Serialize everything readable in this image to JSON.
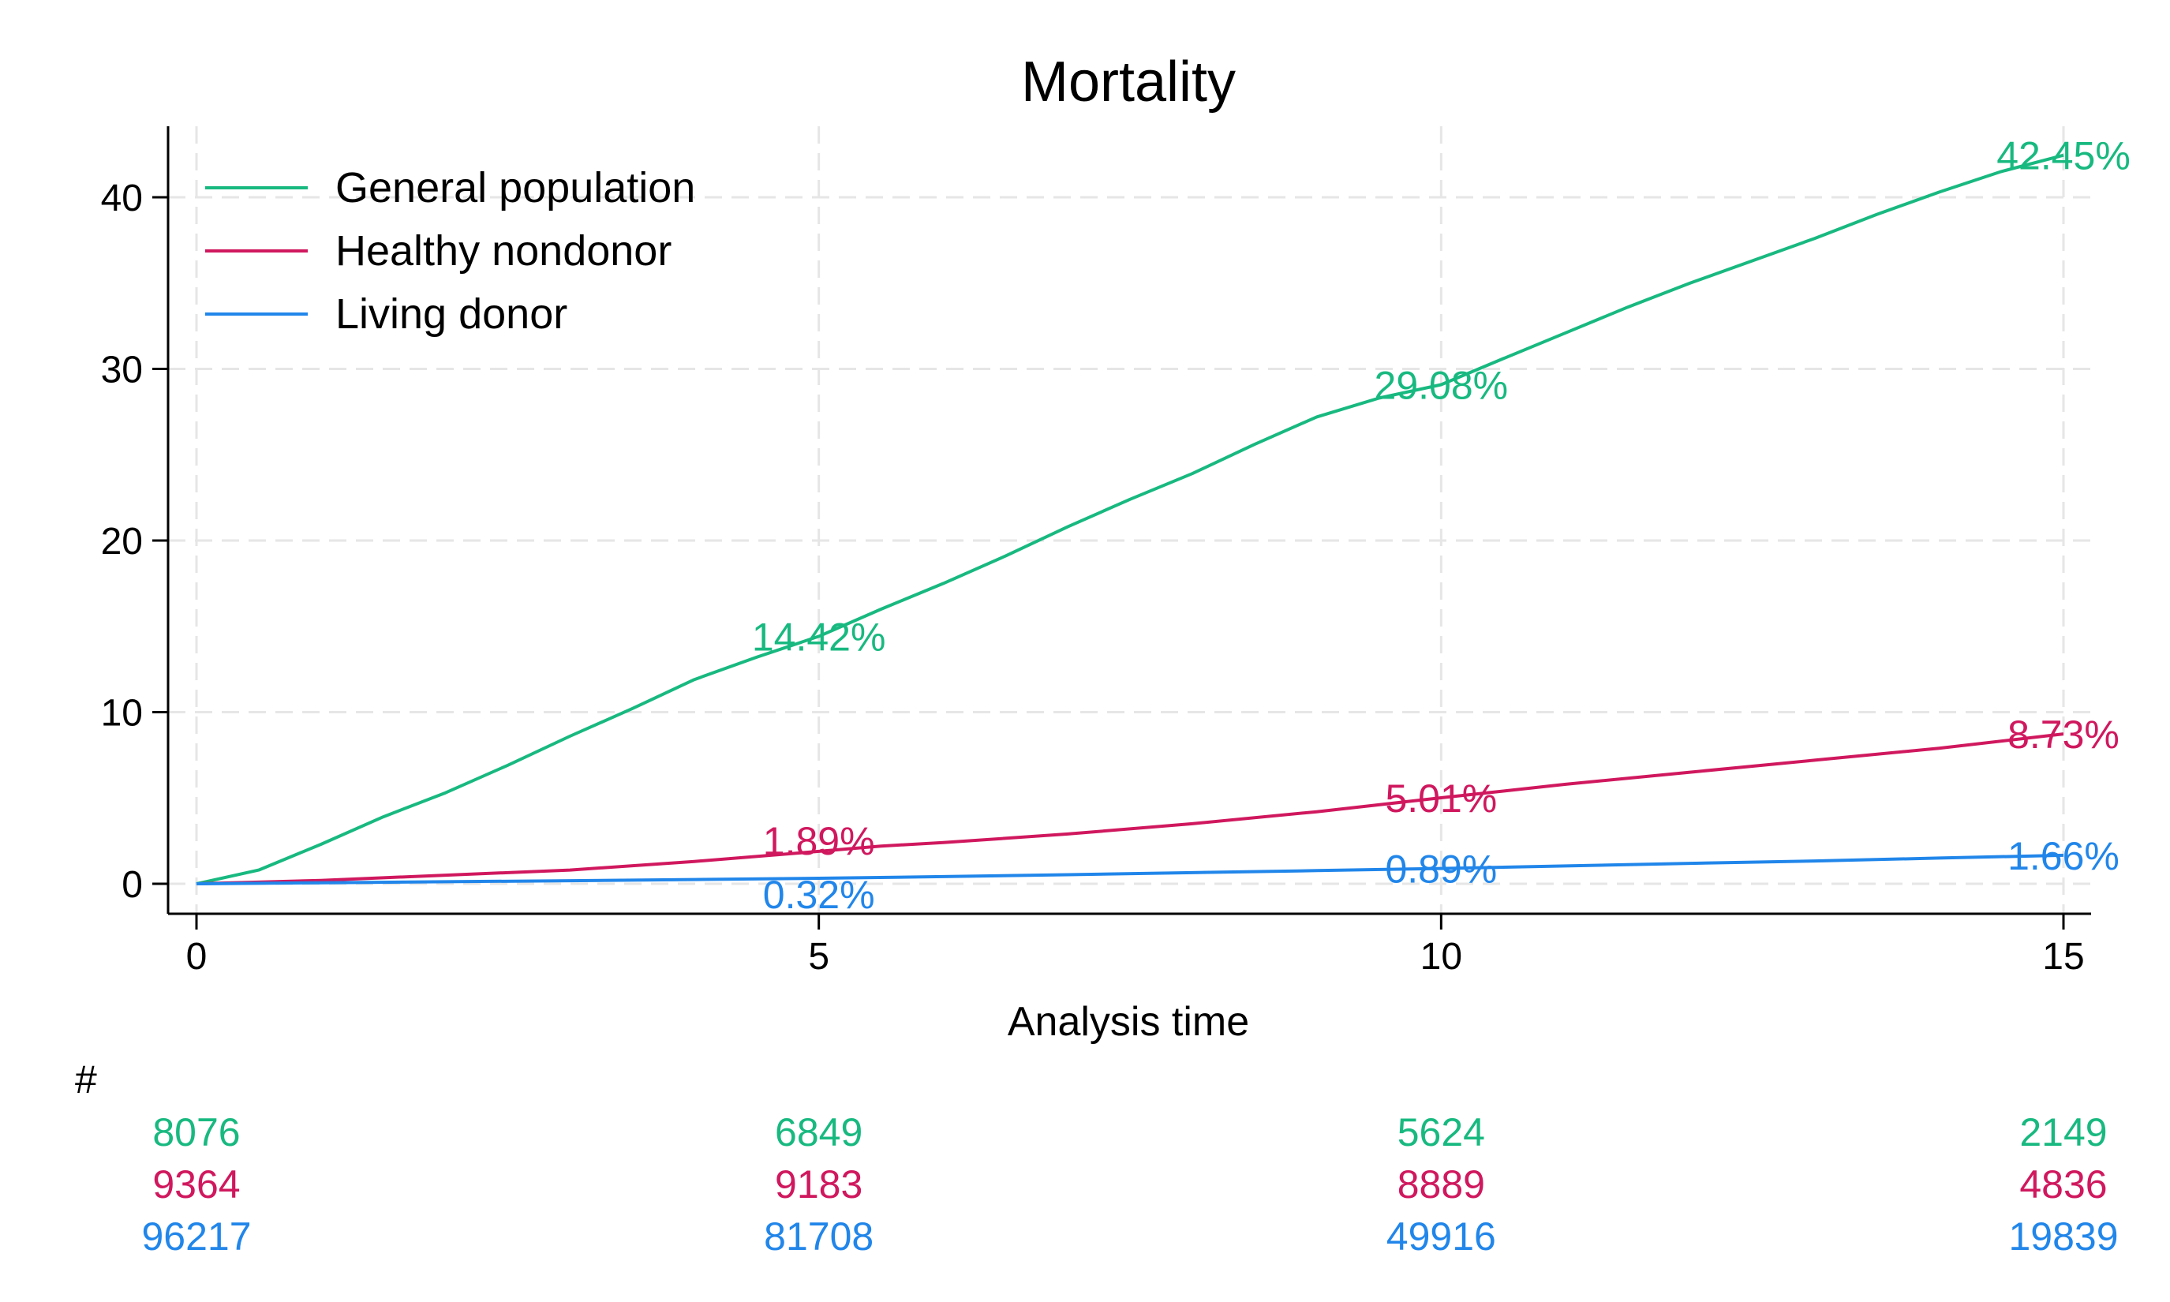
{
  "chart_data": {
    "type": "line",
    "title": "Mortality",
    "xlabel": "Analysis time",
    "ylabel": "",
    "xlim": [
      0,
      15
    ],
    "ylim": [
      0,
      44
    ],
    "x_ticks": [
      0,
      5,
      10,
      15
    ],
    "y_ticks": [
      0,
      10,
      20,
      30,
      40
    ],
    "grid": true,
    "legend_position": "top-left",
    "series": [
      {
        "name": "General population",
        "color": "#18b980",
        "x": [
          0,
          0.5,
          1,
          1.5,
          2,
          2.5,
          3,
          3.5,
          4,
          4.5,
          5,
          5.5,
          6,
          6.5,
          7,
          7.5,
          8,
          8.5,
          9,
          9.5,
          10,
          10.5,
          11,
          11.5,
          12,
          12.5,
          13,
          13.5,
          14,
          14.5,
          15
        ],
        "y": [
          0,
          0.8,
          2.3,
          3.9,
          5.3,
          6.9,
          8.6,
          10.2,
          11.9,
          13.2,
          14.42,
          16.0,
          17.5,
          19.1,
          20.8,
          22.4,
          23.9,
          25.6,
          27.2,
          28.3,
          29.08,
          30.6,
          32.1,
          33.6,
          35.0,
          36.3,
          37.6,
          39.0,
          40.3,
          41.5,
          42.45
        ],
        "labels": [
          {
            "x": 5,
            "y": 14.42,
            "text": "14.42%"
          },
          {
            "x": 10,
            "y": 29.08,
            "text": "29.08%"
          },
          {
            "x": 15,
            "y": 42.45,
            "text": "42.45%"
          }
        ]
      },
      {
        "name": "Healthy nondonor",
        "color": "#d0185e",
        "x": [
          0,
          1,
          2,
          3,
          4,
          5,
          5.5,
          6,
          7,
          8,
          9,
          10,
          10.5,
          11,
          12,
          13,
          14,
          15
        ],
        "y": [
          0,
          0.2,
          0.5,
          0.8,
          1.3,
          1.89,
          2.2,
          2.4,
          2.9,
          3.5,
          4.2,
          5.01,
          5.4,
          5.8,
          6.5,
          7.2,
          7.9,
          8.73
        ],
        "labels": [
          {
            "x": 5,
            "y": 1.89,
            "text": "1.89%"
          },
          {
            "x": 10,
            "y": 5.01,
            "text": "5.01%"
          },
          {
            "x": 15,
            "y": 8.73,
            "text": "8.73%"
          }
        ]
      },
      {
        "name": "Living donor",
        "color": "#2186ea",
        "x": [
          0,
          1,
          2,
          3,
          4,
          5,
          6,
          7,
          8,
          9,
          10,
          11,
          12,
          13,
          14,
          15
        ],
        "y": [
          0,
          0.06,
          0.12,
          0.18,
          0.25,
          0.32,
          0.42,
          0.53,
          0.65,
          0.77,
          0.89,
          1.04,
          1.19,
          1.33,
          1.5,
          1.66
        ],
        "labels": [
          {
            "x": 5,
            "y": 0.32,
            "text": "0.32%"
          },
          {
            "x": 10,
            "y": 0.89,
            "text": "0.89%"
          },
          {
            "x": 15,
            "y": 1.66,
            "text": "1.66%"
          }
        ]
      }
    ],
    "risk_table": {
      "header": "#",
      "times": [
        0,
        5,
        10,
        15
      ],
      "rows": [
        {
          "name": "General population",
          "color": "#18b980",
          "values": [
            "8076",
            "6849",
            "5624",
            "2149"
          ]
        },
        {
          "name": "Healthy nondonor",
          "color": "#d0185e",
          "values": [
            "9364",
            "9183",
            "8889",
            "4836"
          ]
        },
        {
          "name": "Living donor",
          "color": "#2186ea",
          "values": [
            "96217",
            "81708",
            "49916",
            "19839"
          ]
        }
      ]
    }
  }
}
